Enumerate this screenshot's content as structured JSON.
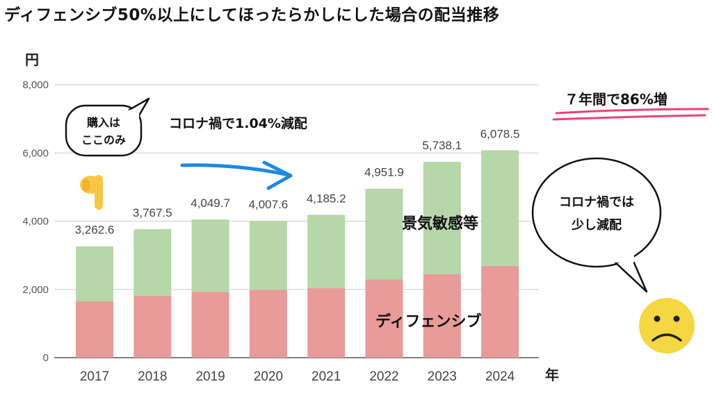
{
  "title": "ディフェンシブ50%以上にしてほったらかしにした場合の配当推移",
  "chart_data": {
    "type": "bar",
    "stacked": true,
    "categories": [
      "2017",
      "2018",
      "2019",
      "2020",
      "2021",
      "2022",
      "2023",
      "2024"
    ],
    "series": [
      {
        "name": "ディフェンシブ",
        "color": "#e89b98",
        "values": [
          1650,
          1810,
          1930,
          1990,
          2040,
          2290,
          2450,
          2690
        ]
      },
      {
        "name": "景気敏感等",
        "color": "#b6d7a8",
        "values": [
          1612.6,
          1957.5,
          2119.7,
          2017.6,
          2145.2,
          2661.9,
          3288.1,
          3388.5
        ]
      }
    ],
    "totals_labels": [
      "3,262.6",
      "3,767.5",
      "4,049.7",
      "4,007.6",
      "4,185.2",
      "4,951.9",
      "5,738.1",
      "6,078.5"
    ],
    "ylim": [
      0,
      8000
    ],
    "yticks": [
      "0",
      "2,000",
      "4,000",
      "6,000",
      "8,000"
    ],
    "ylabel": "円",
    "xlabel": "年",
    "grid": true
  },
  "annotations": {
    "purchase_line1": "購入は",
    "purchase_line2": "ここのみ",
    "corona_drop": "コロナ禍で1.04%減配",
    "growth": "７年間で86%増",
    "corona_bubble_line1": "コロナ禍では",
    "corona_bubble_line2": "少し減配",
    "label_cyclical": "景気敏感等",
    "label_defensive": "ディフェンシブ"
  }
}
